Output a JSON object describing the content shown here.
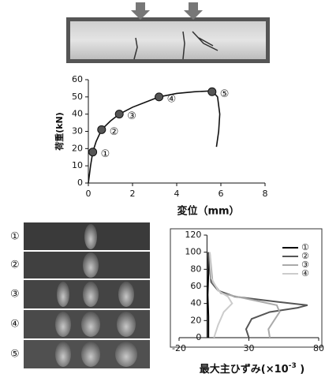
{
  "chart_data": [
    {
      "type": "line",
      "ylabel": "荷重(kN)",
      "xlabel": "変位（mm）",
      "xlim": [
        0,
        8
      ],
      "xticks": [
        0,
        2,
        4,
        6,
        8
      ],
      "ylim": [
        0,
        60
      ],
      "yticks": [
        0,
        10,
        20,
        30,
        40,
        50,
        60
      ],
      "series": [
        {
          "color": "#111111",
          "x": [
            0,
            0.05,
            0.1,
            0.2,
            0.35,
            0.6,
            1.0,
            1.4,
            2.0,
            2.6,
            3.2,
            4.0,
            4.8,
            5.6,
            5.85,
            5.95,
            5.9,
            5.8
          ],
          "values": [
            0,
            5,
            10,
            18,
            24,
            31,
            36,
            40,
            44,
            47,
            50,
            52,
            53,
            53.5,
            50,
            40,
            30,
            21
          ]
        }
      ],
      "markers": {
        "color": "#555555",
        "x": [
          0.2,
          0.6,
          1.4,
          3.2,
          5.6
        ],
        "values": [
          18,
          31,
          40,
          50,
          53
        ],
        "labels": [
          "①",
          "②",
          "③",
          "④",
          "⑤"
        ]
      }
    },
    {
      "type": "line",
      "xlabel": [
        "最大主ひずみ(×10",
        "-3",
        " )"
      ],
      "xlim": [
        -20,
        80
      ],
      "xticks": [
        -20,
        30,
        80
      ],
      "ylim": [
        0,
        120
      ],
      "yticks": [
        0,
        20,
        40,
        60,
        80,
        100,
        120
      ],
      "series": [
        {
          "name": "①",
          "color": "#000000",
          "x": [
            1,
            1,
            0.5,
            1,
            1
          ],
          "values": [
            0,
            25,
            50,
            75,
            100
          ]
        },
        {
          "name": "②",
          "color": "#555555",
          "x": [
            30,
            28,
            32,
            45,
            65,
            72,
            50,
            20,
            8,
            3,
            2,
            1
          ],
          "values": [
            0,
            10,
            22,
            30,
            35,
            38,
            42,
            48,
            55,
            65,
            80,
            100
          ]
        },
        {
          "name": "③",
          "color": "#aaaaaa",
          "x": [
            45,
            44,
            48,
            52,
            50,
            30,
            10,
            4,
            2
          ],
          "values": [
            0,
            10,
            20,
            30,
            38,
            45,
            52,
            65,
            100
          ]
        },
        {
          "name": "④",
          "color": "#cccccc",
          "x": [
            5,
            8,
            12,
            18,
            15,
            8,
            3,
            2
          ],
          "values": [
            0,
            15,
            30,
            40,
            48,
            55,
            70,
            100
          ]
        }
      ]
    }
  ],
  "image_labels": [
    "①",
    "②",
    "③",
    "④",
    "⑤"
  ]
}
